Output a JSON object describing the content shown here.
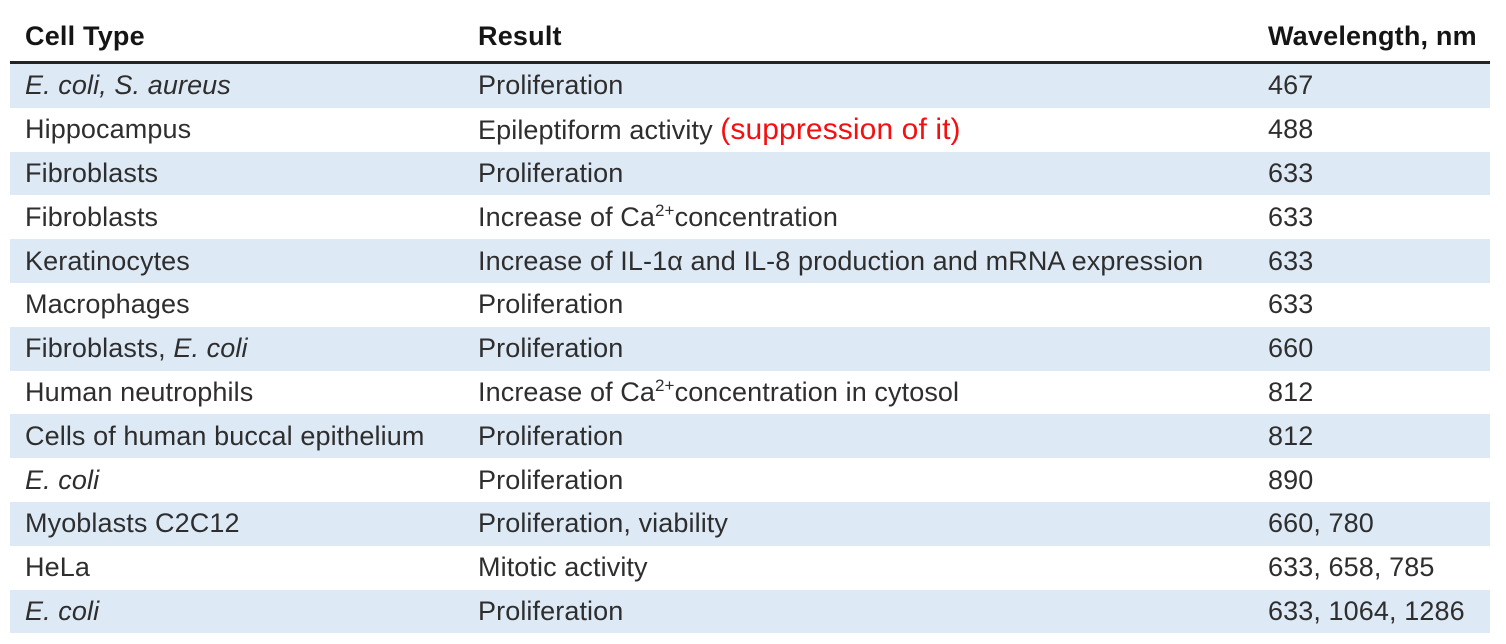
{
  "table": {
    "columns": [
      {
        "label": "Cell Type"
      },
      {
        "label": "Result"
      },
      {
        "label": "Wavelength, nm"
      }
    ],
    "rows": [
      {
        "cell_type": [
          {
            "t": "E. coli, S. aureus",
            "style": "italic"
          }
        ],
        "result": [
          {
            "t": "Proliferation"
          }
        ],
        "wavelength": "467"
      },
      {
        "cell_type": [
          {
            "t": "Hippocampus"
          }
        ],
        "result": [
          {
            "t": "Epileptiform activity "
          },
          {
            "t": "(suppression of it)",
            "style": "red"
          }
        ],
        "wavelength": "488"
      },
      {
        "cell_type": [
          {
            "t": "Fibroblasts"
          }
        ],
        "result": [
          {
            "t": "Proliferation"
          }
        ],
        "wavelength": "633"
      },
      {
        "cell_type": [
          {
            "t": "Fibroblasts"
          }
        ],
        "result": [
          {
            "t": "Increase of Ca"
          },
          {
            "t": "2+",
            "style": "sup"
          },
          {
            "t": "concentration"
          }
        ],
        "wavelength": "633"
      },
      {
        "cell_type": [
          {
            "t": "Keratinocytes"
          }
        ],
        "result": [
          {
            "t": "Increase of IL-1α and IL-8 production and mRNA expression"
          }
        ],
        "wavelength": "633"
      },
      {
        "cell_type": [
          {
            "t": "Macrophages"
          }
        ],
        "result": [
          {
            "t": "Proliferation"
          }
        ],
        "wavelength": "633"
      },
      {
        "cell_type": [
          {
            "t": "Fibroblasts, "
          },
          {
            "t": "E. coli",
            "style": "italic"
          }
        ],
        "result": [
          {
            "t": "Proliferation"
          }
        ],
        "wavelength": "660"
      },
      {
        "cell_type": [
          {
            "t": "Human neutrophils"
          }
        ],
        "result": [
          {
            "t": "Increase of Ca"
          },
          {
            "t": "2+",
            "style": "sup"
          },
          {
            "t": "concentration in cytosol"
          }
        ],
        "wavelength": "812"
      },
      {
        "cell_type": [
          {
            "t": "Cells of human buccal epithelium"
          }
        ],
        "result": [
          {
            "t": "Proliferation"
          }
        ],
        "wavelength": "812"
      },
      {
        "cell_type": [
          {
            "t": "E. coli",
            "style": "italic"
          }
        ],
        "result": [
          {
            "t": "Proliferation"
          }
        ],
        "wavelength": "890"
      },
      {
        "cell_type": [
          {
            "t": "Myoblasts C2C12"
          }
        ],
        "result": [
          {
            "t": "Proliferation, viability"
          }
        ],
        "wavelength": "660, 780"
      },
      {
        "cell_type": [
          {
            "t": "HeLa"
          }
        ],
        "result": [
          {
            "t": "Mitotic activity"
          }
        ],
        "wavelength": "633, 658, 785"
      },
      {
        "cell_type": [
          {
            "t": "E. coli",
            "style": "italic"
          }
        ],
        "result": [
          {
            "t": "Proliferation"
          }
        ],
        "wavelength": "633, 1064, 1286"
      }
    ],
    "colors": {
      "stripe_blue": "#dde9f5",
      "header_rule": "#232323",
      "body_text": "#2e2e2e",
      "annotation_red": "#f50f0f"
    }
  }
}
